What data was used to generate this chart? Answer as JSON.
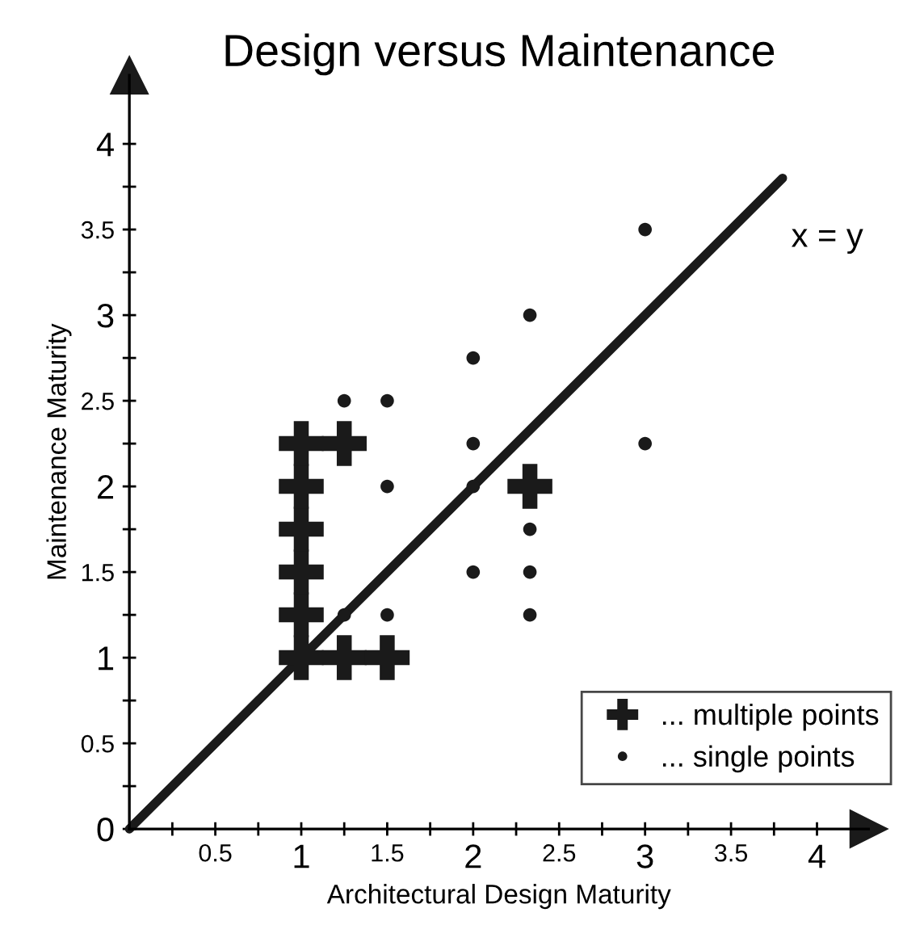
{
  "chart_data": {
    "type": "scatter",
    "title": "Design versus Maintenance",
    "xlabel": "Architectural Design Maturity",
    "ylabel": "Maintenance Maturity",
    "xlim": [
      0,
      4.3
    ],
    "ylim": [
      0,
      4.4
    ],
    "xticks": [
      {
        "value": 0.25,
        "label": null
      },
      0.5,
      {
        "value": 0.75,
        "label": null
      },
      1,
      {
        "value": 1.25,
        "label": null
      },
      1.5,
      {
        "value": 1.75,
        "label": null
      },
      2,
      {
        "value": 2.25,
        "label": null
      },
      2.5,
      {
        "value": 2.75,
        "label": null
      },
      3,
      {
        "value": 3.25,
        "label": null
      },
      3.5,
      {
        "value": 3.75,
        "label": null
      },
      4
    ],
    "yticks": [
      0,
      {
        "value": 0.25,
        "label": null
      },
      0.5,
      {
        "value": 0.75,
        "label": null
      },
      1,
      {
        "value": 1.25,
        "label": null
      },
      1.5,
      {
        "value": 1.75,
        "label": null
      },
      2,
      {
        "value": 2.25,
        "label": null
      },
      2.5,
      {
        "value": 2.75,
        "label": null
      },
      3,
      {
        "value": 3.25,
        "label": null
      },
      3.5,
      {
        "value": 3.75,
        "label": null
      },
      4
    ],
    "grid": false,
    "legend": "bottom right",
    "series": [
      {
        "name": "... multiple points",
        "marker": "cross",
        "color": "#1a1a1a",
        "x": [
          1,
          1,
          1,
          1,
          1,
          1,
          1.25,
          1.25,
          1.5,
          2.33
        ],
        "values": [
          1,
          1.25,
          1.5,
          1.75,
          2,
          2.25,
          2.25,
          1,
          1,
          2
        ]
      },
      {
        "name": "... single points",
        "marker": "circle",
        "color": "#1a1a1a",
        "x": [
          1.25,
          1.5,
          1.5,
          1.5,
          1.25,
          2,
          2,
          2,
          2,
          2.33,
          2.33,
          2.33,
          2.33,
          3,
          3
        ],
        "values": [
          2.5,
          2.5,
          2,
          1.25,
          1.25,
          2.75,
          2.25,
          2,
          1.5,
          3,
          1.75,
          1.5,
          1.25,
          3.5,
          2.25
        ]
      },
      {
        "name": "x = y",
        "type": "line",
        "line_style": "solid",
        "color": "#1a1a1a",
        "x": [
          0,
          3.8
        ],
        "values": [
          0,
          3.8
        ]
      }
    ]
  }
}
